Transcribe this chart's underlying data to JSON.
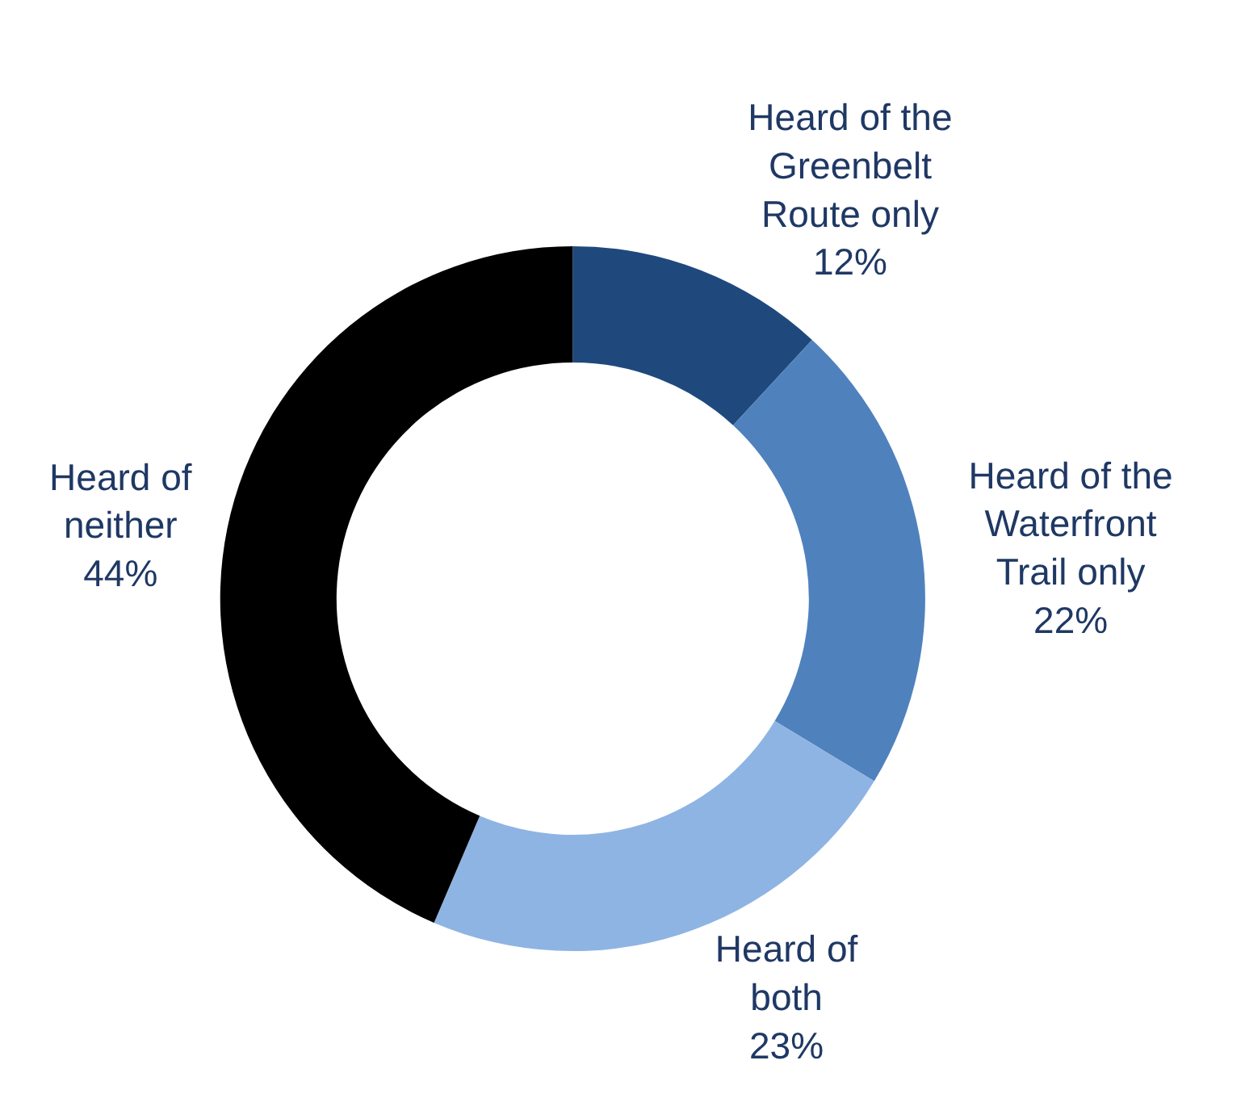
{
  "chart_data": {
    "type": "donut",
    "categories": [
      "Heard of the Greenbelt Route only",
      "Heard of the Waterfront Trail only",
      "Heard of both",
      "Heard of neither"
    ],
    "values": [
      12,
      22,
      23,
      44
    ],
    "value_labels": [
      "12%",
      "22%",
      "23%",
      "44%"
    ],
    "colors": [
      "#1f497d",
      "#4f81bd",
      "#8eb4e3",
      "#000000"
    ]
  }
}
